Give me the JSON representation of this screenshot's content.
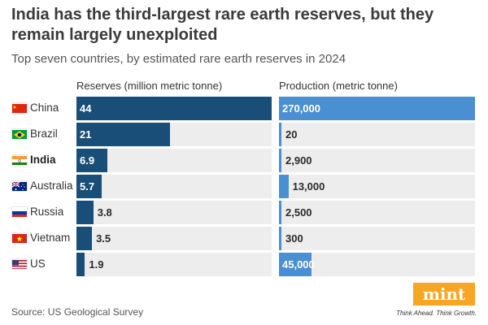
{
  "header": {
    "title": "India has the third-largest rare earth reserves, but they remain largely unexploited",
    "subtitle": "Top seven countries, by estimated rare earth reserves in 2024"
  },
  "columns": {
    "reserves": "Reserves (million metric tonne)",
    "production": "Production (metric tonne)"
  },
  "chart_data": {
    "type": "bar",
    "title": "India has the third-largest rare earth reserves, but they remain largely unexploited",
    "subtitle": "Top seven countries, by estimated rare earth reserves in 2024",
    "categories": [
      "China",
      "Brazil",
      "India",
      "Australia",
      "Russia",
      "Vietnam",
      "US"
    ],
    "highlight": "India",
    "series": [
      {
        "name": "Reserves (million metric tonne)",
        "values": [
          44,
          21,
          6.9,
          5.7,
          3.8,
          3.5,
          1.9
        ],
        "labels": [
          "44",
          "21",
          "6.9",
          "5.7",
          "3.8",
          "3.5",
          "1.9"
        ],
        "max": 44,
        "color": "#184e78"
      },
      {
        "name": "Production (metric tonne)",
        "values": [
          270000,
          20,
          2900,
          13000,
          2500,
          300,
          45000
        ],
        "labels": [
          "270,000",
          "20",
          "2,900",
          "13,000",
          "2,500",
          "300",
          "45,000"
        ],
        "max": 270000,
        "color": "#4a8fd1"
      }
    ],
    "track_color": "#ededed"
  },
  "flags": [
    "china-flag-icon",
    "brazil-flag-icon",
    "india-flag-icon",
    "australia-flag-icon",
    "russia-flag-icon",
    "vietnam-flag-icon",
    "us-flag-icon"
  ],
  "footer": {
    "source": "Source: US Geological Survey",
    "logo": "mint",
    "tagline": "Think Ahead. Think Growth."
  },
  "colors": {
    "logo_bg": "#f5a623"
  }
}
